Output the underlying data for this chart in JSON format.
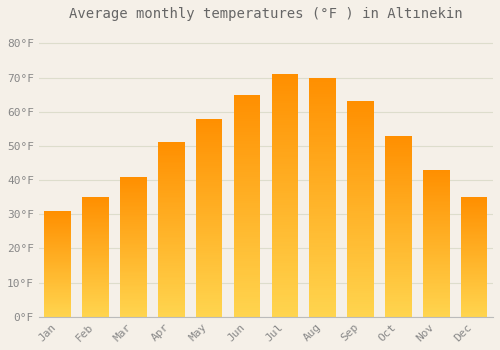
{
  "title": "Average monthly temperatures (°F ) in Altınekin",
  "months": [
    "Jan",
    "Feb",
    "Mar",
    "Apr",
    "May",
    "Jun",
    "Jul",
    "Aug",
    "Sep",
    "Oct",
    "Nov",
    "Dec"
  ],
  "values": [
    31,
    35,
    41,
    51,
    58,
    65,
    71,
    70,
    63,
    53,
    43,
    35
  ],
  "bar_color_main": "#FFA726",
  "bar_color_light": "#FFD54F",
  "ylim": [
    0,
    85
  ],
  "yticks": [
    0,
    10,
    20,
    30,
    40,
    50,
    60,
    70,
    80
  ],
  "ytick_labels": [
    "0°F",
    "10°F",
    "20°F",
    "30°F",
    "40°F",
    "50°F",
    "60°F",
    "70°F",
    "80°F"
  ],
  "background_color": "#F5F0E8",
  "plot_bg_color": "#F5F0E8",
  "grid_color": "#DDDDCC",
  "title_fontsize": 10,
  "tick_fontsize": 8,
  "tick_color": "#888888",
  "title_color": "#666666"
}
